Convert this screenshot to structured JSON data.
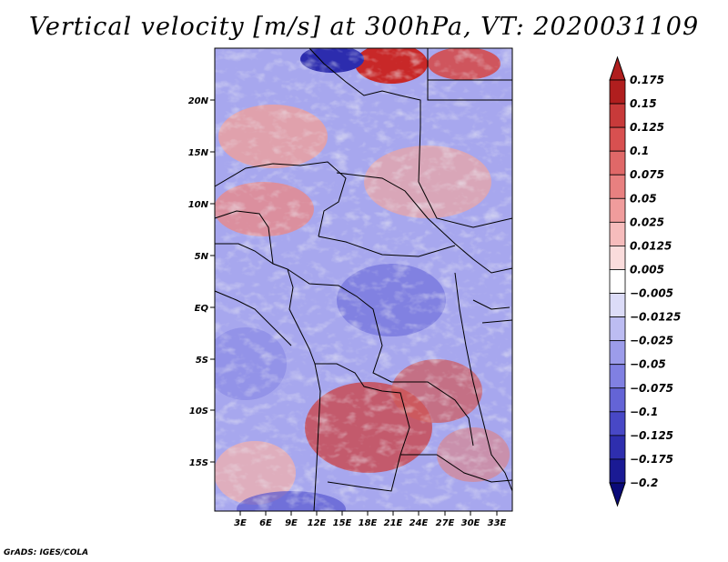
{
  "title": "Vertical velocity [m/s] at 300hPa, VT: 2020031109",
  "footer": "GrADS: IGES/COLA",
  "map": {
    "lat_labels": [
      "20N",
      "15N",
      "10N",
      "5N",
      "EQ",
      "5S",
      "10S",
      "15S"
    ],
    "lon_labels": [
      "3E",
      "6E",
      "9E",
      "12E",
      "15E",
      "18E",
      "21E",
      "24E",
      "27E",
      "30E",
      "33E"
    ]
  },
  "colorbar": {
    "levels": [
      "0.175",
      "0.15",
      "0.125",
      "0.1",
      "0.075",
      "0.05",
      "0.025",
      "0.0125",
      "0.005",
      "−0.005",
      "−0.0125",
      "−0.025",
      "−0.05",
      "−0.075",
      "−0.1",
      "−0.125",
      "−0.175",
      "−0.2"
    ],
    "colors": [
      "#b01e1e",
      "#b01e1e",
      "#c83a3a",
      "#d85050",
      "#e06868",
      "#e88080",
      "#f09c9c",
      "#f6bcbc",
      "#fadcdc",
      "#ffffff",
      "#dcdcf8",
      "#bcbcf2",
      "#9c9cea",
      "#8080e2",
      "#6464d6",
      "#4848c6",
      "#2e2eae",
      "#1a1a94",
      "#0a0a78"
    ]
  }
}
